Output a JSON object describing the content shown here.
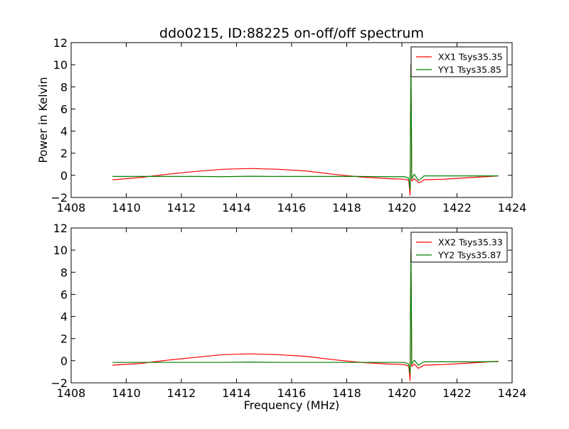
{
  "chart_data": {
    "type": "line",
    "title": "ddo0215, ID:88225 on-off/off spectrum",
    "xlabel": "Frequency (MHz)",
    "ylabel": "Power in Kelvin",
    "xlim": [
      1408,
      1424
    ],
    "ylim": [
      -2,
      12
    ],
    "xticks": [
      "1408",
      "1410",
      "1412",
      "1414",
      "1416",
      "1418",
      "1420",
      "1422",
      "1424"
    ],
    "yticks": [
      "−2",
      "0",
      "2",
      "4",
      "6",
      "8",
      "10",
      "12"
    ],
    "grid": false,
    "panels": [
      {
        "legend_position": "top-right",
        "series": [
          {
            "name": "XX1 Tsys35.35",
            "color": "#ff0000",
            "x": [
              1409.5,
              1410.5,
              1411.5,
              1412.5,
              1413.5,
              1414.5,
              1415.5,
              1416.5,
              1417.5,
              1418.5,
              1419.5,
              1420.1,
              1420.25,
              1420.3,
              1420.33,
              1420.36,
              1420.45,
              1420.6,
              1420.7,
              1420.8,
              1421.5,
              1422.5,
              1423.5
            ],
            "y": [
              -0.4,
              -0.2,
              0.1,
              0.35,
              0.55,
              0.62,
              0.55,
              0.4,
              0.1,
              -0.15,
              -0.3,
              -0.35,
              -0.45,
              -1.8,
              9.8,
              -0.5,
              -0.3,
              -0.65,
              -0.6,
              -0.4,
              -0.35,
              -0.2,
              -0.05
            ]
          },
          {
            "name": "YY1 Tsys35.85",
            "color": "#007f00",
            "x": [
              1409.5,
              1410.5,
              1411.5,
              1412.5,
              1413.5,
              1414.5,
              1415.5,
              1416.5,
              1417.5,
              1418.5,
              1419.5,
              1420.1,
              1420.25,
              1420.3,
              1420.33,
              1420.36,
              1420.45,
              1420.6,
              1420.7,
              1420.8,
              1421.5,
              1422.5,
              1423.5
            ],
            "y": [
              -0.1,
              -0.1,
              -0.1,
              -0.1,
              -0.12,
              -0.08,
              -0.1,
              -0.1,
              -0.1,
              -0.1,
              -0.12,
              -0.12,
              -0.25,
              -1.3,
              10.1,
              -0.3,
              0.1,
              -0.45,
              -0.3,
              -0.05,
              -0.05,
              -0.05,
              -0.05
            ]
          }
        ]
      },
      {
        "legend_position": "top-right",
        "series": [
          {
            "name": "XX2 Tsys35.33",
            "color": "#ff0000",
            "x": [
              1409.5,
              1410.5,
              1411.5,
              1412.5,
              1413.5,
              1414.5,
              1415.5,
              1416.5,
              1417.5,
              1418.5,
              1419.5,
              1420.1,
              1420.25,
              1420.3,
              1420.33,
              1420.36,
              1420.45,
              1420.6,
              1420.7,
              1420.8,
              1421.5,
              1422.5,
              1423.5
            ],
            "y": [
              -0.4,
              -0.25,
              0.05,
              0.3,
              0.55,
              0.62,
              0.55,
              0.4,
              0.1,
              -0.15,
              -0.3,
              -0.35,
              -0.5,
              -1.8,
              9.8,
              -0.5,
              -0.3,
              -0.7,
              -0.55,
              -0.4,
              -0.35,
              -0.2,
              -0.05
            ]
          },
          {
            "name": "YY2 Tsys35.87",
            "color": "#007f00",
            "x": [
              1409.5,
              1410.5,
              1411.5,
              1412.5,
              1413.5,
              1414.5,
              1415.5,
              1416.5,
              1417.5,
              1418.5,
              1419.5,
              1420.1,
              1420.25,
              1420.3,
              1420.33,
              1420.36,
              1420.45,
              1420.6,
              1420.7,
              1420.8,
              1421.5,
              1422.5,
              1423.5
            ],
            "y": [
              -0.15,
              -0.15,
              -0.15,
              -0.15,
              -0.15,
              -0.12,
              -0.15,
              -0.15,
              -0.15,
              -0.15,
              -0.15,
              -0.15,
              -0.3,
              -1.2,
              10.1,
              -0.3,
              0.05,
              -0.4,
              -0.25,
              -0.1,
              -0.1,
              -0.1,
              -0.08
            ]
          }
        ]
      }
    ]
  }
}
